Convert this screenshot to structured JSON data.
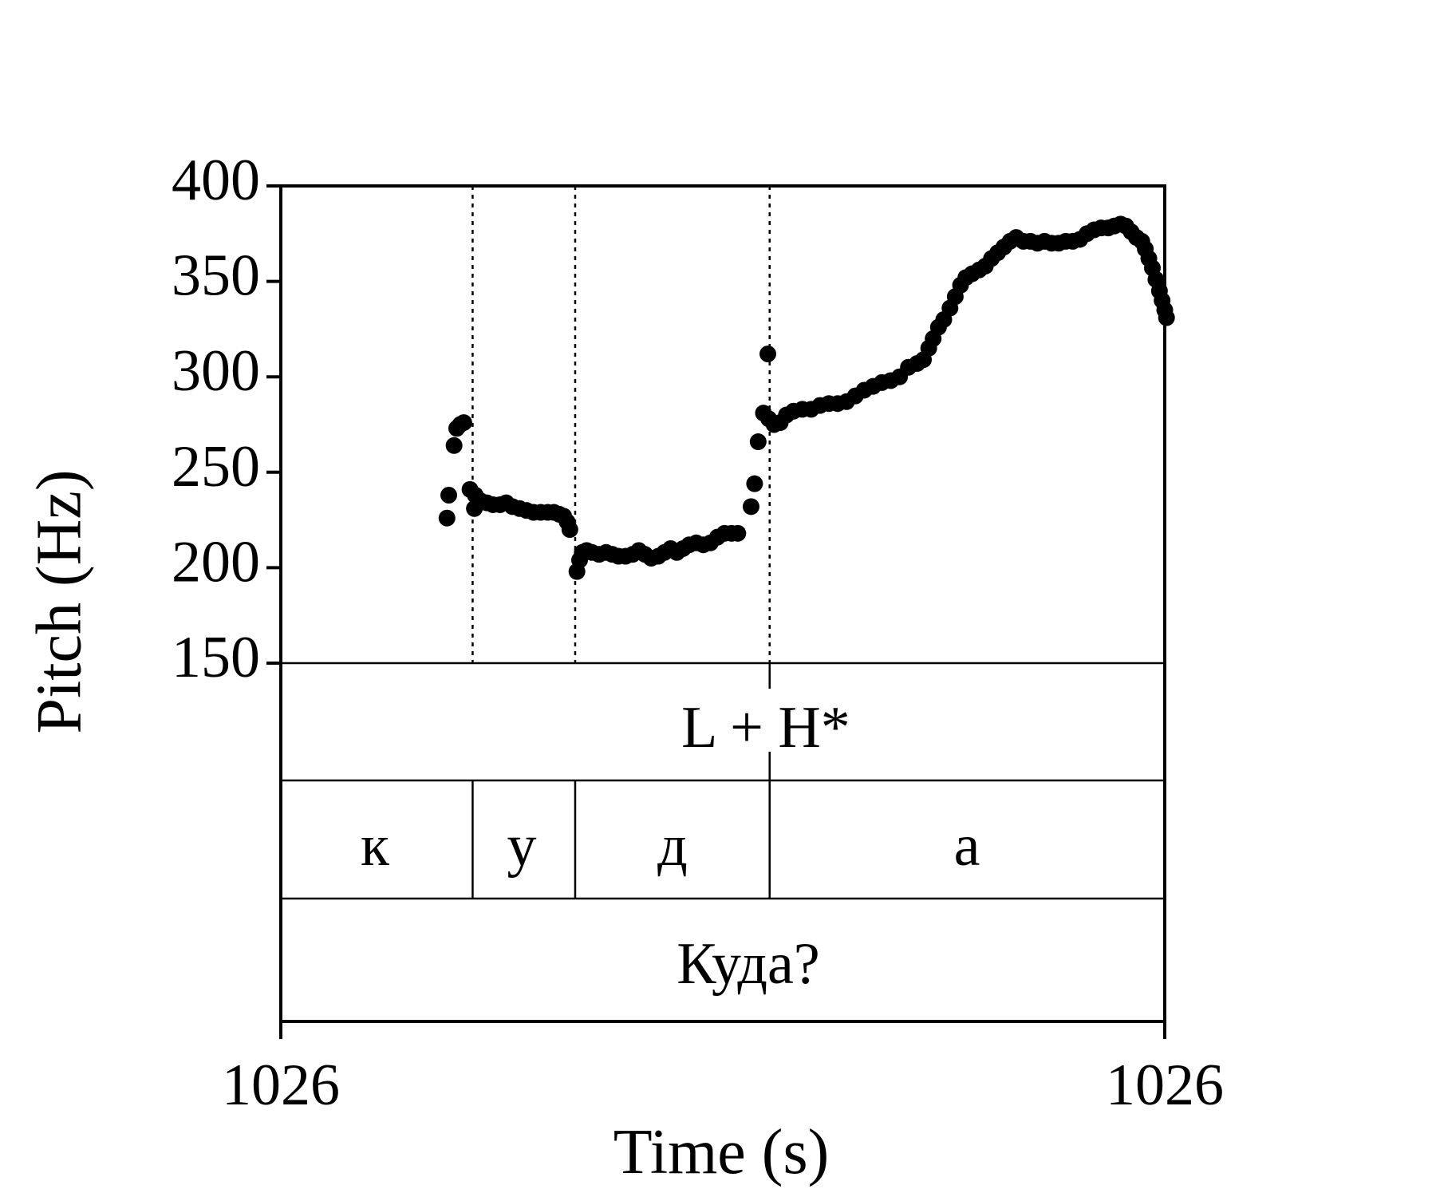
{
  "chart_data": {
    "type": "scatter",
    "title": "",
    "xlabel": "Time (s)",
    "ylabel": "Pitch (Hz)",
    "ylim": [
      150,
      400
    ],
    "xlim": [
      0,
      1
    ],
    "x_tick_labels": [
      "1026",
      "1026"
    ],
    "y_ticks": [
      400,
      350,
      300,
      250,
      200,
      150
    ],
    "grid": false,
    "point_color": "#000000",
    "boundaries": [
      0.217,
      0.333,
      0.553
    ],
    "tiers": {
      "tone": {
        "label": "L + H*"
      },
      "segments": [
        {
          "label": "к",
          "start": 0.0,
          "end": 0.217
        },
        {
          "label": "у",
          "start": 0.217,
          "end": 0.333
        },
        {
          "label": "д",
          "start": 0.333,
          "end": 0.553
        },
        {
          "label": "а",
          "start": 0.553,
          "end": 1.0
        }
      ],
      "word": {
        "label": "Куда?"
      }
    },
    "points": [
      [
        0.188,
        226
      ],
      [
        0.19,
        238
      ],
      [
        0.196,
        264
      ],
      [
        0.199,
        273
      ],
      [
        0.203,
        275
      ],
      [
        0.207,
        276
      ],
      [
        0.214,
        241
      ],
      [
        0.22,
        238
      ],
      [
        0.219,
        231
      ],
      [
        0.226,
        235
      ],
      [
        0.233,
        234
      ],
      [
        0.24,
        233
      ],
      [
        0.248,
        233
      ],
      [
        0.255,
        234
      ],
      [
        0.262,
        232
      ],
      [
        0.27,
        231
      ],
      [
        0.278,
        230
      ],
      [
        0.286,
        229
      ],
      [
        0.294,
        229
      ],
      [
        0.302,
        229
      ],
      [
        0.309,
        229
      ],
      [
        0.315,
        228
      ],
      [
        0.32,
        227
      ],
      [
        0.324,
        224
      ],
      [
        0.327,
        220
      ],
      [
        0.335,
        198
      ],
      [
        0.338,
        204
      ],
      [
        0.341,
        208
      ],
      [
        0.346,
        209
      ],
      [
        0.352,
        208
      ],
      [
        0.36,
        207
      ],
      [
        0.368,
        208
      ],
      [
        0.375,
        207
      ],
      [
        0.382,
        206
      ],
      [
        0.39,
        206
      ],
      [
        0.398,
        207
      ],
      [
        0.405,
        209
      ],
      [
        0.412,
        207
      ],
      [
        0.419,
        205
      ],
      [
        0.427,
        206
      ],
      [
        0.434,
        208
      ],
      [
        0.441,
        210
      ],
      [
        0.448,
        208
      ],
      [
        0.455,
        210
      ],
      [
        0.462,
        212
      ],
      [
        0.47,
        213
      ],
      [
        0.478,
        212
      ],
      [
        0.486,
        213
      ],
      [
        0.494,
        216
      ],
      [
        0.502,
        218
      ],
      [
        0.51,
        218
      ],
      [
        0.517,
        218
      ],
      [
        0.532,
        232
      ],
      [
        0.536,
        244
      ],
      [
        0.54,
        266
      ],
      [
        0.546,
        281
      ],
      [
        0.551,
        312
      ],
      [
        0.552,
        278
      ],
      [
        0.558,
        275
      ],
      [
        0.565,
        276
      ],
      [
        0.572,
        280
      ],
      [
        0.58,
        282
      ],
      [
        0.59,
        283
      ],
      [
        0.6,
        283
      ],
      [
        0.61,
        285
      ],
      [
        0.62,
        286
      ],
      [
        0.63,
        286
      ],
      [
        0.64,
        287
      ],
      [
        0.65,
        290
      ],
      [
        0.66,
        293
      ],
      [
        0.67,
        295
      ],
      [
        0.68,
        297
      ],
      [
        0.69,
        298
      ],
      [
        0.7,
        300
      ],
      [
        0.71,
        305
      ],
      [
        0.72,
        307
      ],
      [
        0.727,
        309
      ],
      [
        0.733,
        315
      ],
      [
        0.738,
        320
      ],
      [
        0.744,
        326
      ],
      [
        0.75,
        330
      ],
      [
        0.757,
        336
      ],
      [
        0.763,
        342
      ],
      [
        0.769,
        348
      ],
      [
        0.775,
        352
      ],
      [
        0.782,
        354
      ],
      [
        0.79,
        356
      ],
      [
        0.797,
        358
      ],
      [
        0.804,
        362
      ],
      [
        0.811,
        365
      ],
      [
        0.818,
        368
      ],
      [
        0.825,
        371
      ],
      [
        0.832,
        373
      ],
      [
        0.84,
        371
      ],
      [
        0.848,
        371
      ],
      [
        0.856,
        370
      ],
      [
        0.864,
        371
      ],
      [
        0.872,
        370
      ],
      [
        0.88,
        370
      ],
      [
        0.888,
        371
      ],
      [
        0.896,
        371
      ],
      [
        0.904,
        372
      ],
      [
        0.912,
        375
      ],
      [
        0.92,
        377
      ],
      [
        0.928,
        378
      ],
      [
        0.936,
        378
      ],
      [
        0.943,
        379
      ],
      [
        0.95,
        380
      ],
      [
        0.956,
        379
      ],
      [
        0.962,
        376
      ],
      [
        0.968,
        373
      ],
      [
        0.974,
        371
      ],
      [
        0.978,
        367
      ],
      [
        0.982,
        362
      ],
      [
        0.986,
        357
      ],
      [
        0.99,
        351
      ],
      [
        0.994,
        345
      ],
      [
        0.997,
        340
      ],
      [
        1.0,
        335
      ],
      [
        1.002,
        331
      ]
    ]
  }
}
